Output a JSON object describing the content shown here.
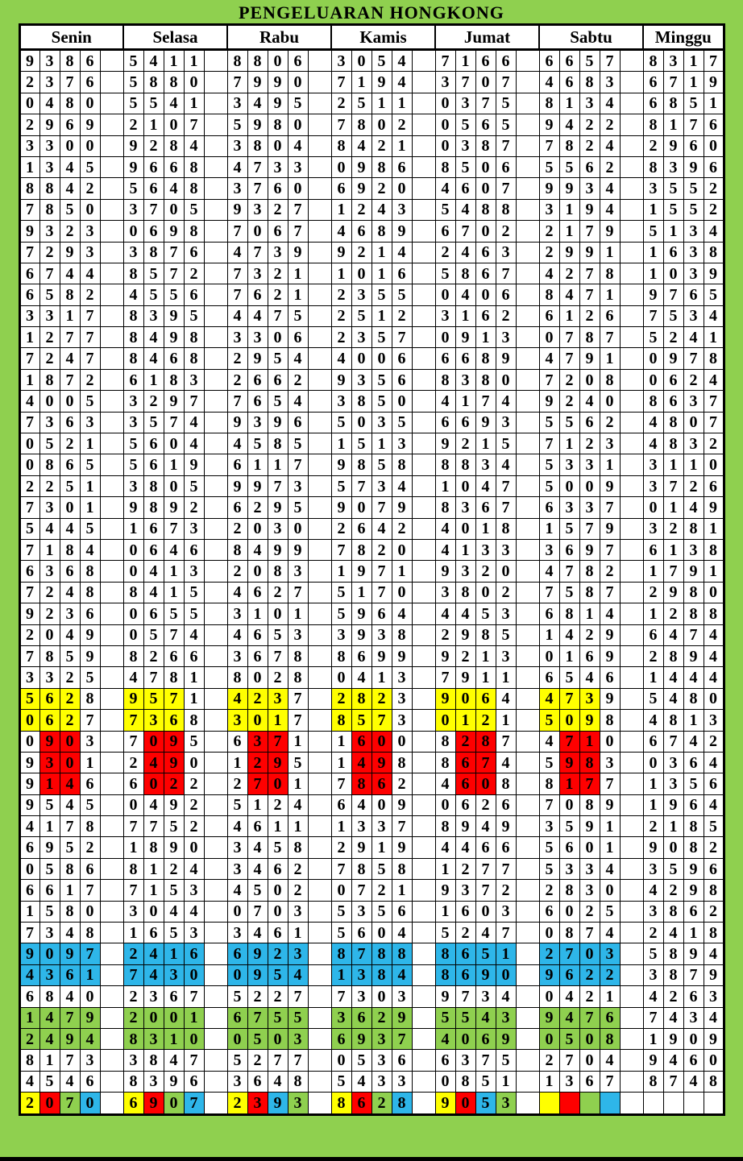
{
  "title": "PENGELUARAN HONGKONG",
  "colors": {
    "yellow": "#ffff00",
    "red": "#fe0000",
    "blue": "#2eb6e9",
    "green": "#8fd04f",
    "page_background": "#8fd04f",
    "cell_background": "#ffffff",
    "border": "#000000",
    "text": "#000000"
  },
  "table": {
    "headers": [
      "Senin",
      "Selasa",
      "Rabu",
      "Kamis",
      "Jumat",
      "Sabtu",
      "Minggu"
    ],
    "rows": [
      {
        "values": [
          "9386",
          "5411",
          "8806",
          "3054",
          "7166",
          "6657",
          "8317"
        ]
      },
      {
        "values": [
          "2376",
          "5880",
          "7990",
          "7194",
          "3707",
          "4683",
          "6719"
        ]
      },
      {
        "values": [
          "0480",
          "5541",
          "3495",
          "2511",
          "0375",
          "8134",
          "6851"
        ]
      },
      {
        "values": [
          "2969",
          "2107",
          "5980",
          "7802",
          "0565",
          "9422",
          "8176"
        ]
      },
      {
        "values": [
          "3300",
          "9284",
          "3804",
          "8421",
          "0387",
          "7824",
          "2960"
        ]
      },
      {
        "values": [
          "1345",
          "9668",
          "4733",
          "0986",
          "8506",
          "5562",
          "8396"
        ]
      },
      {
        "values": [
          "8842",
          "5648",
          "3760",
          "6920",
          "4607",
          "9934",
          "3552"
        ]
      },
      {
        "values": [
          "7850",
          "3705",
          "9327",
          "1243",
          "5488",
          "3194",
          "1552"
        ]
      },
      {
        "values": [
          "9323",
          "0698",
          "7067",
          "4689",
          "6702",
          "2179",
          "5134"
        ]
      },
      {
        "values": [
          "7293",
          "3876",
          "4739",
          "9214",
          "2463",
          "2991",
          "1638"
        ]
      },
      {
        "values": [
          "6744",
          "8572",
          "7321",
          "1016",
          "5867",
          "4278",
          "1039"
        ]
      },
      {
        "values": [
          "6582",
          "4556",
          "7621",
          "2355",
          "0406",
          "8471",
          "9765"
        ]
      },
      {
        "values": [
          "3317",
          "8395",
          "4475",
          "2512",
          "3162",
          "6126",
          "7534"
        ]
      },
      {
        "values": [
          "1277",
          "8498",
          "3306",
          "2357",
          "0913",
          "0787",
          "5241"
        ]
      },
      {
        "values": [
          "7247",
          "8468",
          "2954",
          "4006",
          "6689",
          "4791",
          "0978"
        ]
      },
      {
        "values": [
          "1872",
          "6183",
          "2662",
          "9356",
          "8380",
          "7208",
          "0624"
        ]
      },
      {
        "values": [
          "4005",
          "3297",
          "7654",
          "3850",
          "4174",
          "9240",
          "8637"
        ]
      },
      {
        "values": [
          "7363",
          "3574",
          "9396",
          "5035",
          "6693",
          "5562",
          "4807"
        ]
      },
      {
        "values": [
          "0521",
          "5604",
          "4585",
          "1513",
          "9215",
          "7123",
          "4832"
        ]
      },
      {
        "values": [
          "0865",
          "5619",
          "6117",
          "9858",
          "8834",
          "5331",
          "3110"
        ]
      },
      {
        "values": [
          "2251",
          "3805",
          "9973",
          "5734",
          "1047",
          "5009",
          "3726"
        ]
      },
      {
        "values": [
          "7301",
          "9892",
          "6295",
          "9079",
          "8367",
          "6337",
          "0149"
        ]
      },
      {
        "values": [
          "5445",
          "1673",
          "2030",
          "2642",
          "4018",
          "1579",
          "3281"
        ]
      },
      {
        "values": [
          "7184",
          "0646",
          "8499",
          "7820",
          "4133",
          "3697",
          "6138"
        ]
      },
      {
        "values": [
          "6368",
          "0413",
          "2083",
          "1971",
          "9320",
          "4782",
          "1791"
        ]
      },
      {
        "values": [
          "7248",
          "8415",
          "4627",
          "5170",
          "3802",
          "7587",
          "2980"
        ]
      },
      {
        "values": [
          "9236",
          "0655",
          "3101",
          "5964",
          "4453",
          "6814",
          "1288"
        ]
      },
      {
        "values": [
          "2049",
          "0574",
          "4653",
          "3938",
          "2985",
          "1429",
          "6474"
        ]
      },
      {
        "values": [
          "7859",
          "8266",
          "3678",
          "8699",
          "9213",
          "0169",
          "2894"
        ]
      },
      {
        "values": [
          "3325",
          "4781",
          "8028",
          "0413",
          "7911",
          "6546",
          "1444"
        ]
      },
      {
        "values": [
          "5628",
          "9571",
          "4237",
          "2823",
          "9064",
          "4739",
          "5480"
        ],
        "highlight": {
          "color": "yellow",
          "digit_positions": [
            0,
            1,
            2
          ],
          "day_indexes": [
            0,
            1,
            2,
            3,
            4,
            5
          ]
        }
      },
      {
        "values": [
          "0627",
          "7368",
          "3017",
          "8573",
          "0121",
          "5098",
          "4813"
        ],
        "highlight": {
          "color": "yellow",
          "digit_positions": [
            0,
            1,
            2
          ],
          "day_indexes": [
            0,
            1,
            2,
            3,
            4,
            5
          ]
        }
      },
      {
        "values": [
          "0903",
          "7095",
          "6371",
          "1600",
          "8287",
          "4710",
          "6742"
        ],
        "highlight": {
          "color": "red",
          "digit_positions": [
            1,
            2
          ],
          "day_indexes": [
            0,
            1,
            2,
            3,
            4,
            5
          ]
        }
      },
      {
        "values": [
          "9301",
          "2490",
          "1295",
          "1498",
          "8674",
          "5983",
          "0364"
        ],
        "highlight": {
          "color": "red",
          "digit_positions": [
            1,
            2
          ],
          "day_indexes": [
            0,
            1,
            2,
            3,
            4,
            5
          ]
        }
      },
      {
        "values": [
          "9146",
          "6022",
          "2701",
          "7862",
          "4608",
          "8177",
          "1356"
        ],
        "highlight": {
          "color": "red",
          "digit_positions": [
            1,
            2
          ],
          "day_indexes": [
            0,
            1,
            2,
            3,
            4,
            5
          ]
        }
      },
      {
        "values": [
          "9545",
          "0492",
          "5124",
          "6409",
          "0626",
          "7089",
          "1964"
        ]
      },
      {
        "values": [
          "4178",
          "7752",
          "4611",
          "1337",
          "8949",
          "3591",
          "2185"
        ]
      },
      {
        "values": [
          "6952",
          "1890",
          "3458",
          "2919",
          "4466",
          "5601",
          "9082"
        ]
      },
      {
        "values": [
          "0586",
          "8124",
          "3462",
          "7858",
          "1277",
          "5334",
          "3596"
        ]
      },
      {
        "values": [
          "6617",
          "7153",
          "4502",
          "0721",
          "9372",
          "2830",
          "4298"
        ]
      },
      {
        "values": [
          "1580",
          "3044",
          "0703",
          "5356",
          "1603",
          "6025",
          "3862"
        ]
      },
      {
        "values": [
          "7348",
          "1653",
          "3461",
          "5604",
          "5247",
          "0874",
          "2418"
        ]
      },
      {
        "values": [
          "9097",
          "2416",
          "6923",
          "8788",
          "8651",
          "2703",
          "5894"
        ],
        "highlight": {
          "color": "blue",
          "digit_positions": [
            0,
            1,
            2,
            3
          ],
          "day_indexes": [
            0,
            1,
            2,
            3,
            4,
            5
          ]
        }
      },
      {
        "values": [
          "4361",
          "7430",
          "0954",
          "1384",
          "8690",
          "9622",
          "3879"
        ],
        "highlight": {
          "color": "blue",
          "digit_positions": [
            0,
            1,
            2,
            3
          ],
          "day_indexes": [
            0,
            1,
            2,
            3,
            4,
            5
          ]
        }
      },
      {
        "values": [
          "6840",
          "2367",
          "5227",
          "7303",
          "9734",
          "0421",
          "4263"
        ]
      },
      {
        "values": [
          "1479",
          "2001",
          "6755",
          "3629",
          "5543",
          "9476",
          "7434"
        ],
        "highlight": {
          "color": "green",
          "digit_positions": [
            0,
            1,
            2,
            3
          ],
          "day_indexes": [
            0,
            1,
            2,
            3,
            4,
            5
          ]
        }
      },
      {
        "values": [
          "2494",
          "8310",
          "0503",
          "6937",
          "4069",
          "0508",
          "1909"
        ],
        "highlight": {
          "color": "green",
          "digit_positions": [
            0,
            1,
            2,
            3
          ],
          "day_indexes": [
            0,
            1,
            2,
            3,
            4,
            5
          ]
        }
      },
      {
        "values": [
          "8173",
          "3847",
          "5277",
          "0536",
          "6375",
          "2704",
          "9460"
        ]
      },
      {
        "values": [
          "4546",
          "8396",
          "3648",
          "5433",
          "0851",
          "1367",
          "8748"
        ]
      },
      {
        "values": [
          "2070",
          "6907",
          "2393",
          "8628",
          "9053",
          "",
          ""
        ],
        "digit_colors": [
          [
            "yellow",
            "red",
            "green",
            "blue"
          ],
          [
            "yellow",
            "red",
            "green",
            "blue"
          ],
          [
            "yellow",
            "red",
            "blue",
            "green"
          ],
          [
            "yellow",
            "red",
            "green",
            "blue"
          ],
          [
            "yellow",
            "red",
            "blue",
            "green"
          ],
          [
            "yellow",
            "red",
            "green",
            "blue"
          ],
          null
        ]
      }
    ]
  }
}
